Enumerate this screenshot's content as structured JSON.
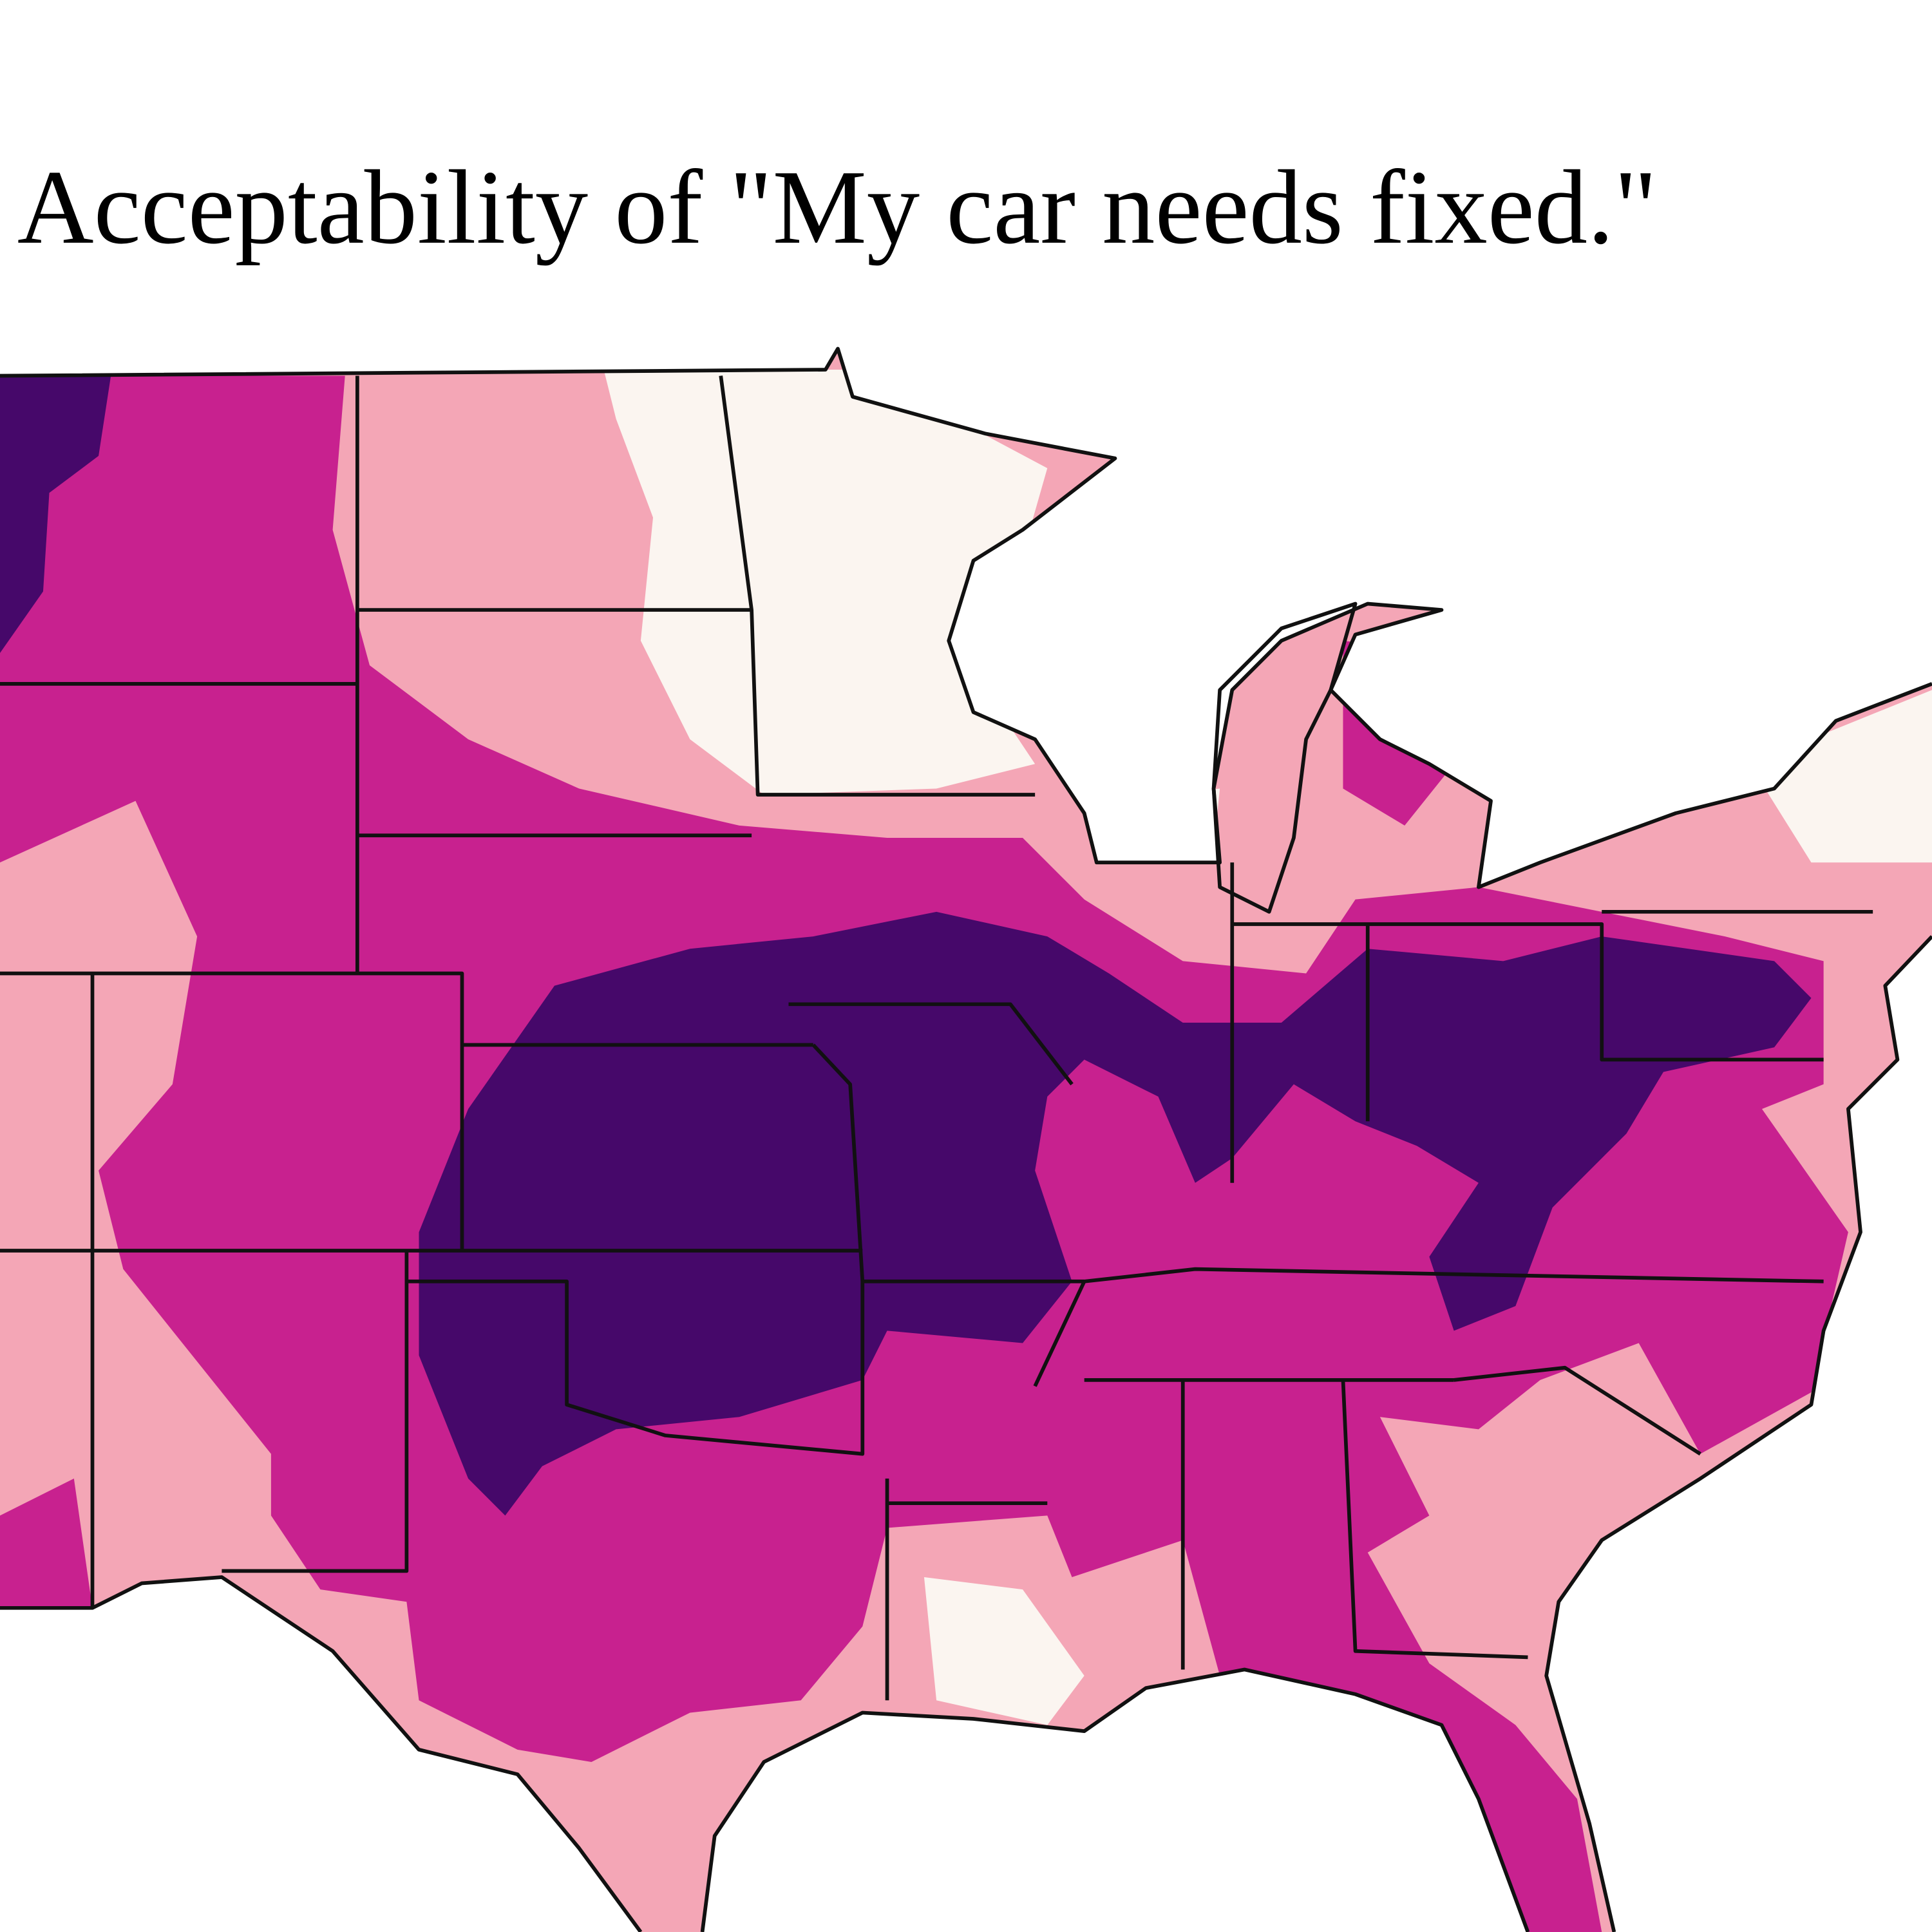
{
  "title": "Acceptability of \"My car needs fixed.\""
}
